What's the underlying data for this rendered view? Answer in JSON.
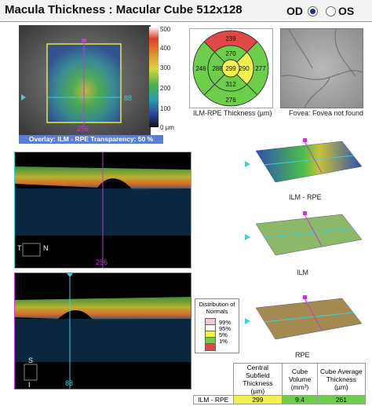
{
  "header": {
    "title": "Macula Thickness : Macular Cube 512x128",
    "od_label": "OD",
    "os_label": "OS",
    "selected_eye": "OD"
  },
  "fundus": {
    "overlay_caption": "Overlay: ILM - RPE  Transparency: 50 %",
    "scan_index_label": "256",
    "side_scan_label": "88",
    "scale_labels": [
      "500",
      "400",
      "300",
      "200",
      "100",
      "0 µm"
    ]
  },
  "etdrs": {
    "center": "299",
    "inner_top": "270",
    "inner_nasal": "290",
    "inner_bottom": "312",
    "inner_temporal": "288",
    "outer_top": "239",
    "outer_nasal": "277",
    "outer_bottom": "276",
    "outer_temporal": "246",
    "caption": "ILM-RPE Thickness (µm)"
  },
  "fovea": {
    "caption": "Fovea: Fovea not found"
  },
  "bscan_top": {
    "index_label": "256",
    "orient_left": "T",
    "orient_right": "N"
  },
  "bscan_bottom": {
    "index_label": "88",
    "orient_top": "S",
    "orient_bottom": "I"
  },
  "surfaces": {
    "ilm_rpe_label": "ILM - RPE",
    "ilm_label": "ILM",
    "rpe_label": "RPE"
  },
  "legend": {
    "title": "Distribution of Normals",
    "items": [
      {
        "label": "99%",
        "color": "#f2c6d8"
      },
      {
        "label": "95%",
        "color": "#ffffff"
      },
      {
        "label": "5%",
        "color": "#f3ef4f"
      },
      {
        "label": "1%",
        "color": "#6cce4b"
      },
      {
        "label": "",
        "color": "#e04848"
      }
    ]
  },
  "summary": {
    "headers": [
      "Central Subfield Thickness (µm)",
      "Cube Volume (mm³)",
      "Cube Average Thickness (µm)"
    ],
    "row_label": "ILM - RPE",
    "values": [
      "299",
      "9.4",
      "261"
    ],
    "value_colors": [
      "#f3ef4f",
      "#6cce4b",
      "#6cce4b"
    ]
  },
  "colors": {
    "accent_magenta": "#c23bd0",
    "accent_cyan": "#3fd0d8",
    "caption_blue": "#5a7fd0"
  }
}
